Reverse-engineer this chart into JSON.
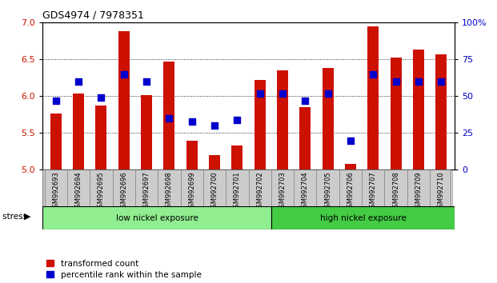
{
  "title": "GDS4974 / 7978351",
  "samples": [
    "GSM992693",
    "GSM992694",
    "GSM992695",
    "GSM992696",
    "GSM992697",
    "GSM992698",
    "GSM992699",
    "GSM992700",
    "GSM992701",
    "GSM992702",
    "GSM992703",
    "GSM992704",
    "GSM992705",
    "GSM992706",
    "GSM992707",
    "GSM992708",
    "GSM992709",
    "GSM992710"
  ],
  "red_values": [
    5.77,
    6.04,
    5.87,
    6.88,
    6.01,
    6.47,
    5.4,
    5.2,
    5.33,
    6.22,
    6.35,
    5.85,
    6.38,
    5.08,
    6.95,
    6.52,
    6.63,
    6.57
  ],
  "blue_values": [
    47,
    60,
    49,
    65,
    60,
    35,
    33,
    30,
    34,
    52,
    52,
    47,
    52,
    20,
    65,
    60,
    60,
    60
  ],
  "low_count": 10,
  "low_label": "low nickel exposure",
  "high_label": "high nickel exposure",
  "stress_label": "stress",
  "legend_red": "transformed count",
  "legend_blue": "percentile rank within the sample",
  "ylim_left": [
    5.0,
    7.0
  ],
  "ylim_right": [
    0,
    100
  ],
  "yticks_left": [
    5.0,
    5.5,
    6.0,
    6.5,
    7.0
  ],
  "yticks_right": [
    0,
    25,
    50,
    75,
    100
  ],
  "ytick_labels_right": [
    "0",
    "25",
    "50",
    "75",
    "100%"
  ],
  "red_color": "#CC1100",
  "blue_color": "#0000CC",
  "bar_width": 0.5,
  "dot_size": 40,
  "low_bg": "#90EE90",
  "high_bg": "#44CC44",
  "tick_label_bg": "#CCCCCC",
  "grid_dotted_values": [
    5.5,
    6.0,
    6.5
  ]
}
